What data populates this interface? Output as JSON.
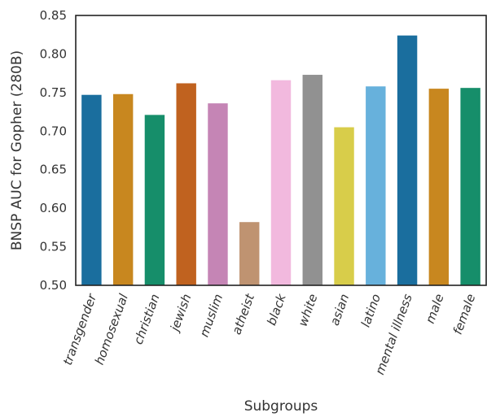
{
  "chart_data": {
    "type": "bar",
    "title": "",
    "xlabel": "Subgroups",
    "ylabel": "BNSP AUC for Gopher (280B)",
    "ylim": [
      0.5,
      0.85
    ],
    "yticks": [
      "0.50",
      "0.55",
      "0.60",
      "0.65",
      "0.70",
      "0.75",
      "0.80",
      "0.85"
    ],
    "grid": false,
    "legend": "none",
    "categories": [
      "transgender",
      "homosexual",
      "christian",
      "jewish",
      "muslim",
      "atheist",
      "black",
      "white",
      "asian",
      "latino",
      "mental illness",
      "male",
      "female"
    ],
    "values": [
      0.747,
      0.748,
      0.721,
      0.762,
      0.736,
      0.582,
      0.766,
      0.773,
      0.705,
      0.758,
      0.824,
      0.755,
      0.756
    ],
    "colors": [
      "#1a6e9e",
      "#c8871f",
      "#168e6a",
      "#c0621f",
      "#c585b5",
      "#bf9371",
      "#f2b9de",
      "#919191",
      "#d8cd4a",
      "#67b1dc",
      "#1a6e9e",
      "#c8871f",
      "#168e6a"
    ]
  }
}
